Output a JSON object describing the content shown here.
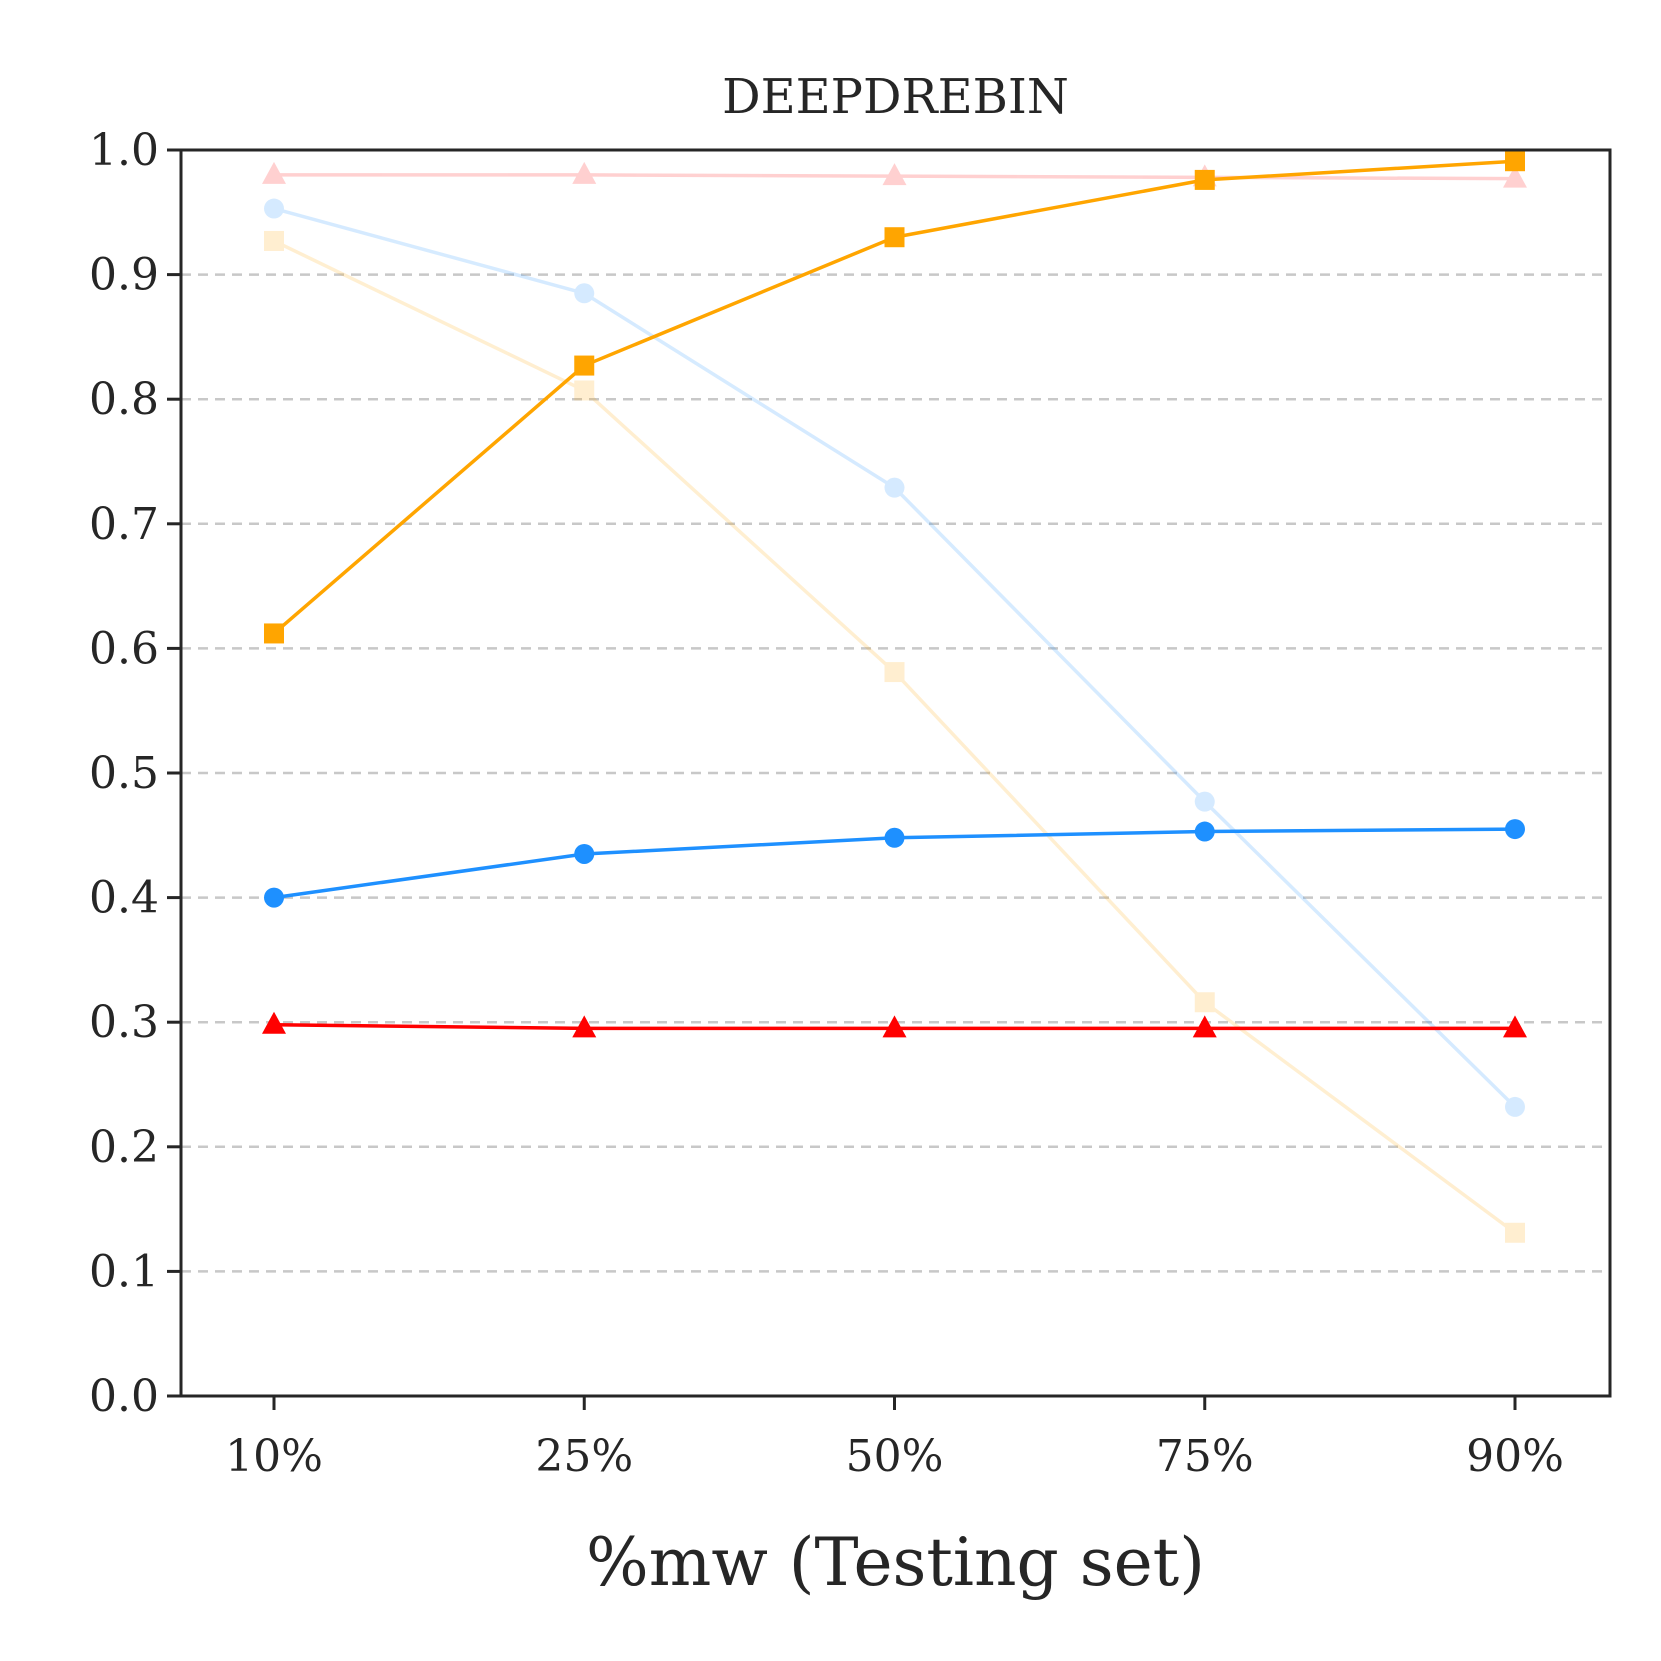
{
  "chart_data": {
    "type": "line",
    "title": "DEEPDREBIN",
    "xlabel": "%mw (Testing set)",
    "ylabel": "",
    "categories": [
      "10%",
      "25%",
      "50%",
      "75%",
      "90%"
    ],
    "ylim": [
      0.0,
      1.0
    ],
    "yticks": [
      "0.0",
      "0.1",
      "0.2",
      "0.3",
      "0.4",
      "0.5",
      "0.6",
      "0.7",
      "0.8",
      "0.9",
      "1.0"
    ],
    "grid": "horizontal-dashed",
    "series": [
      {
        "name": "faded-red-triangles",
        "color": "#ff0000",
        "marker": "triangle",
        "faded": true,
        "values": [
          0.98,
          0.98,
          0.979,
          0.978,
          0.977
        ]
      },
      {
        "name": "faded-blue-circles",
        "color": "#1e90ff",
        "marker": "circle",
        "faded": true,
        "values": [
          0.953,
          0.885,
          0.729,
          0.477,
          0.232
        ]
      },
      {
        "name": "faded-orange-squares",
        "color": "#ffa500",
        "marker": "square",
        "faded": true,
        "values": [
          0.927,
          0.807,
          0.581,
          0.316,
          0.131
        ]
      },
      {
        "name": "orange-squares",
        "color": "#ffa500",
        "marker": "square",
        "faded": false,
        "values": [
          0.612,
          0.827,
          0.93,
          0.976,
          0.991
        ]
      },
      {
        "name": "blue-circles",
        "color": "#1e90ff",
        "marker": "circle",
        "faded": false,
        "values": [
          0.4,
          0.435,
          0.448,
          0.453,
          0.455
        ]
      },
      {
        "name": "red-triangles",
        "color": "#ff0000",
        "marker": "triangle",
        "faded": false,
        "values": [
          0.298,
          0.295,
          0.295,
          0.295,
          0.295
        ]
      }
    ]
  }
}
